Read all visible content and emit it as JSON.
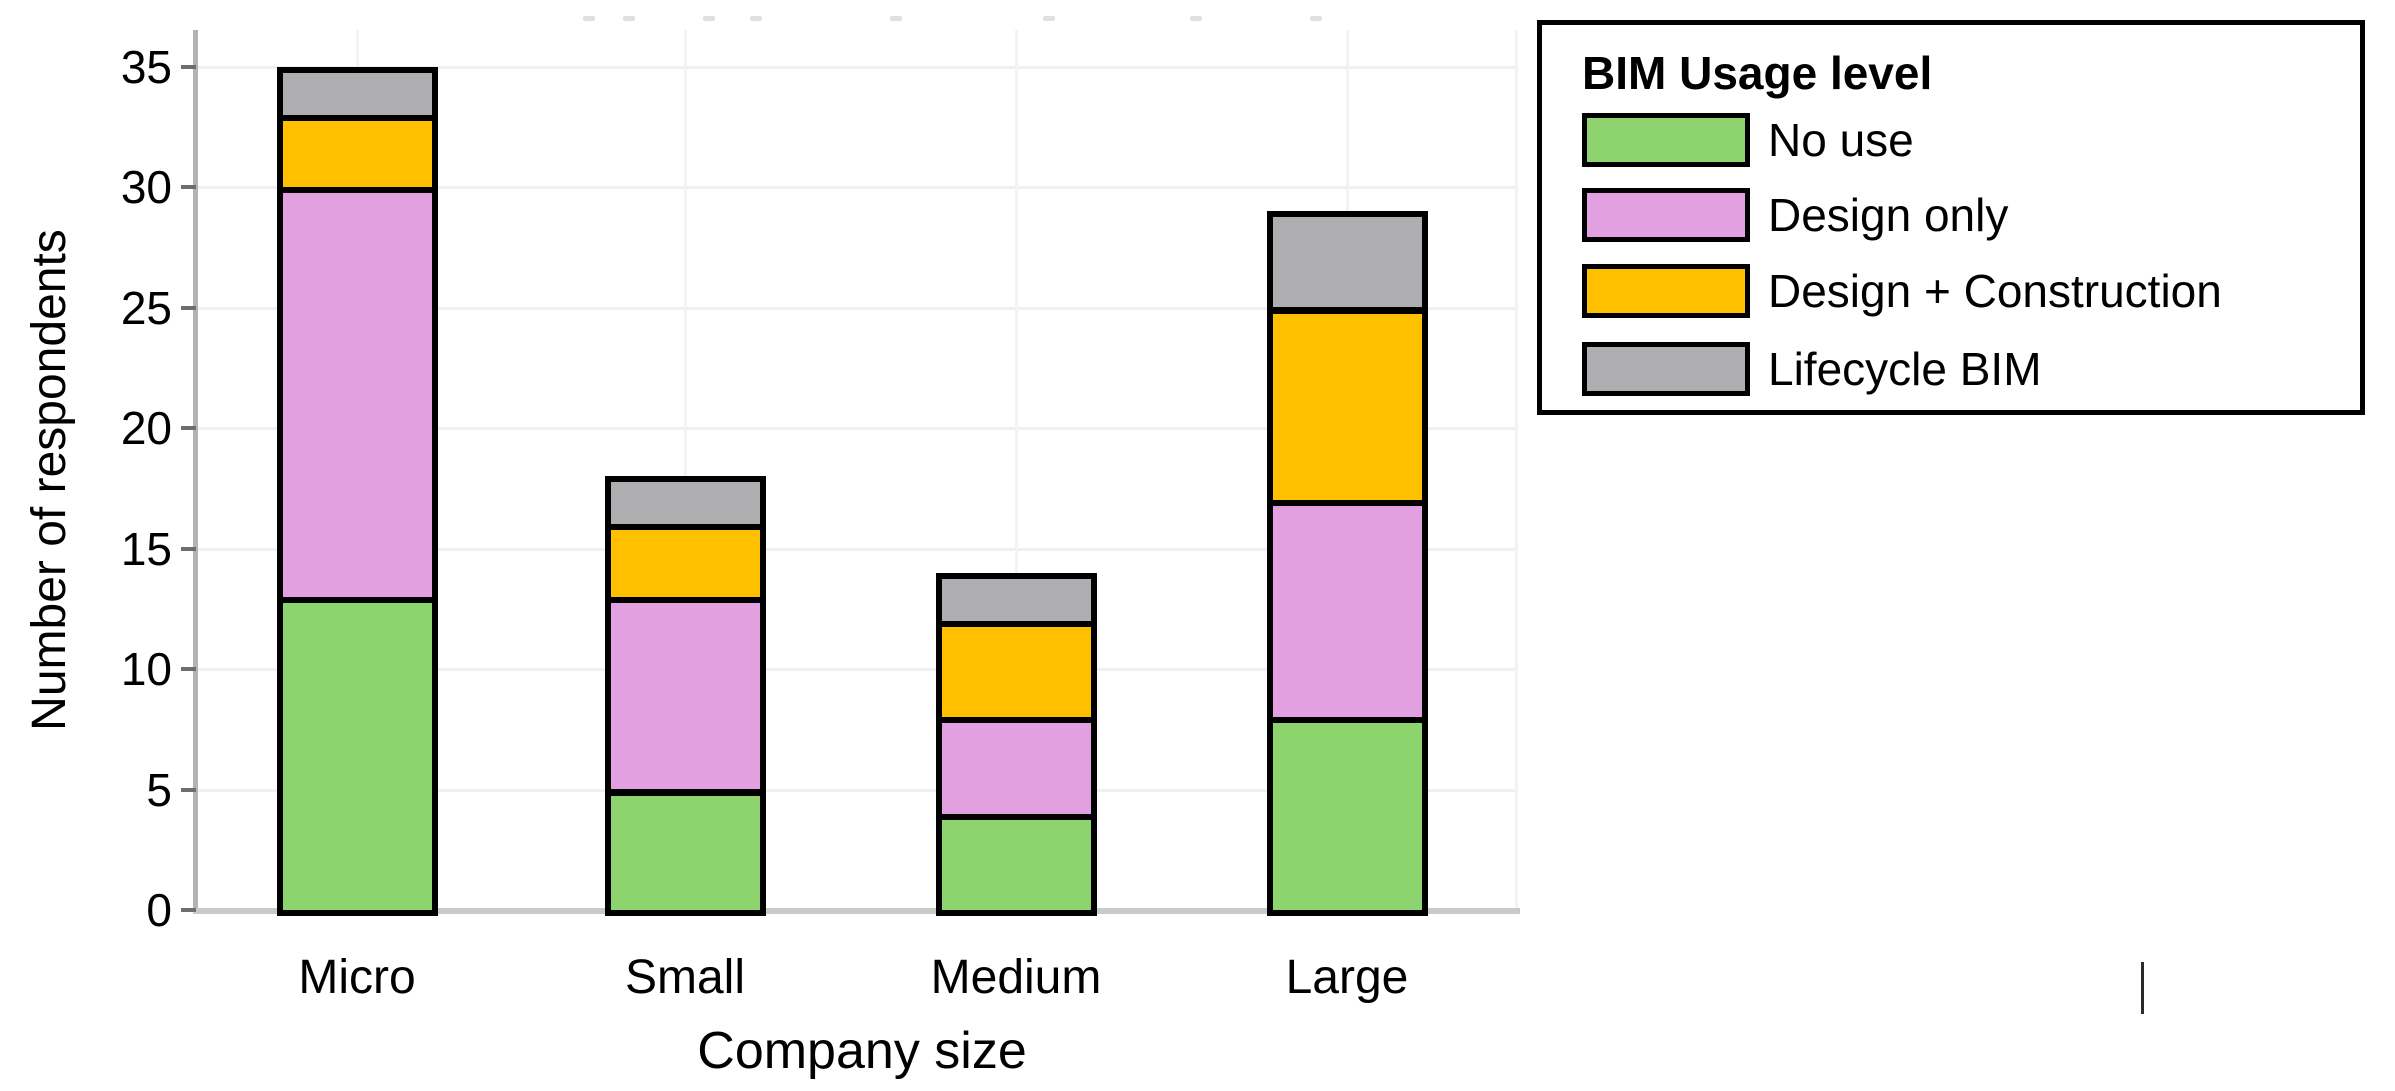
{
  "chart_data": {
    "type": "bar",
    "stacked": true,
    "title": "",
    "xlabel": "Company size",
    "ylabel": "Number of respondents",
    "categories": [
      "Micro",
      "Small",
      "Medium",
      "Large"
    ],
    "series": [
      {
        "name": "No use",
        "color": "#8dd46f",
        "values": [
          13,
          5,
          4,
          8
        ]
      },
      {
        "name": "Design only",
        "color": "#e2a0e0",
        "values": [
          17,
          8,
          4,
          9
        ]
      },
      {
        "name": "Design + Construction",
        "color": "#ffc000",
        "values": [
          3,
          3,
          4,
          8
        ]
      },
      {
        "name": "Lifecycle BIM",
        "color": "#aeaeb0",
        "values": [
          2,
          2,
          2,
          4
        ]
      }
    ],
    "totals": [
      35,
      18,
      14,
      29
    ],
    "yticks": [
      0,
      5,
      10,
      15,
      20,
      25,
      30,
      35
    ],
    "ylim": [
      0,
      37
    ],
    "grid": true,
    "bar_outline_color": "#000000",
    "legend_title": "BIM Usage level",
    "legend_position": "top-right"
  }
}
